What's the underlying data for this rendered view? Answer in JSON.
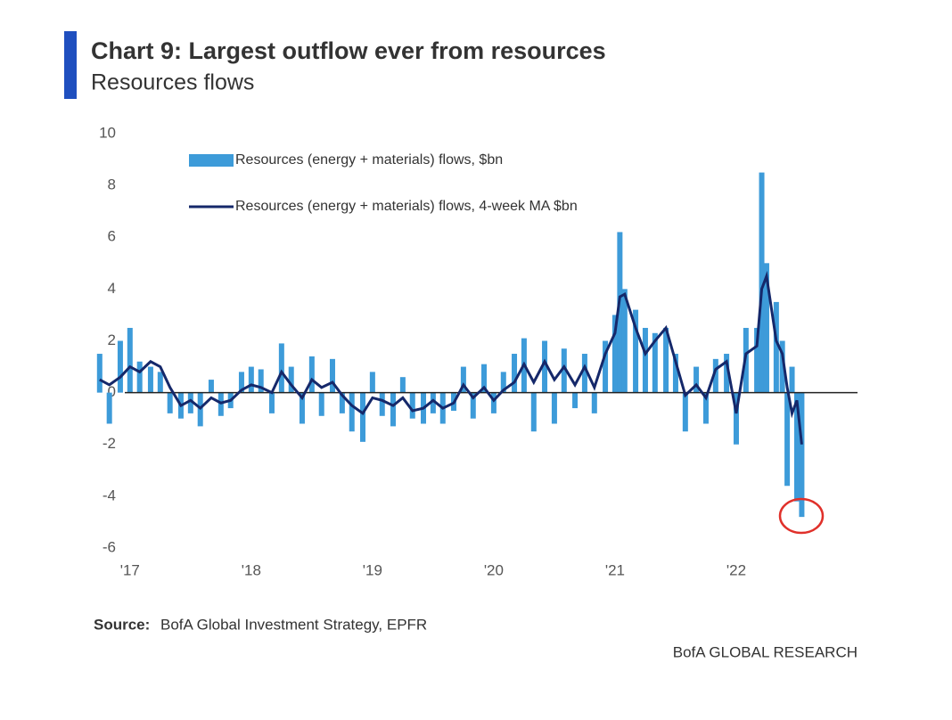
{
  "chart_data": {
    "type": "bar+line",
    "title": "Chart 9: Largest outflow ever from resources",
    "subtitle": "Resources flows",
    "source_label": "Source:",
    "source_text": "BofA Global Investment Strategy, EPFR",
    "brand": "BofA GLOBAL RESEARCH",
    "legend": "top-left",
    "xlim": [
      2016.7,
      2023.0
    ],
    "xticks": [
      {
        "value": 2017,
        "label": "'17"
      },
      {
        "value": 2018,
        "label": "'18"
      },
      {
        "value": 2019,
        "label": "'19"
      },
      {
        "value": 2020,
        "label": "'20"
      },
      {
        "value": 2021,
        "label": "'21"
      },
      {
        "value": 2022,
        "label": "'22"
      }
    ],
    "ylim": [
      -6,
      10
    ],
    "yticks": [
      -6,
      -4,
      -2,
      0,
      2,
      4,
      6,
      8,
      10
    ],
    "x": [
      2016.75,
      2016.83,
      2016.92,
      2017.0,
      2017.08,
      2017.17,
      2017.25,
      2017.33,
      2017.42,
      2017.5,
      2017.58,
      2017.67,
      2017.75,
      2017.83,
      2017.92,
      2018.0,
      2018.08,
      2018.17,
      2018.25,
      2018.33,
      2018.42,
      2018.5,
      2018.58,
      2018.67,
      2018.75,
      2018.83,
      2018.92,
      2019.0,
      2019.08,
      2019.17,
      2019.25,
      2019.33,
      2019.42,
      2019.5,
      2019.58,
      2019.67,
      2019.75,
      2019.83,
      2019.92,
      2020.0,
      2020.08,
      2020.17,
      2020.25,
      2020.33,
      2020.42,
      2020.5,
      2020.58,
      2020.67,
      2020.75,
      2020.83,
      2020.92,
      2021.0,
      2021.04,
      2021.08,
      2021.17,
      2021.25,
      2021.33,
      2021.42,
      2021.5,
      2021.58,
      2021.67,
      2021.75,
      2021.83,
      2021.92,
      2022.0,
      2022.08,
      2022.17,
      2022.21,
      2022.25,
      2022.33,
      2022.38,
      2022.42,
      2022.46,
      2022.5,
      2022.54
    ],
    "series": [
      {
        "name": "Resources (energy + materials) flows, $bn",
        "kind": "bar",
        "color": "#3d9bd9",
        "values": [
          1.5,
          -1.2,
          2.0,
          2.5,
          1.2,
          1.0,
          0.8,
          -0.8,
          -1.0,
          -0.8,
          -1.3,
          0.5,
          -0.9,
          -0.6,
          0.8,
          1.0,
          0.9,
          -0.8,
          1.9,
          1.0,
          -1.2,
          1.4,
          -0.9,
          1.3,
          -0.8,
          -1.5,
          -1.9,
          0.8,
          -0.9,
          -1.3,
          0.6,
          -1.0,
          -1.2,
          -0.8,
          -1.2,
          -0.7,
          1.0,
          -1.0,
          1.1,
          -0.8,
          0.8,
          1.5,
          2.1,
          -1.5,
          2.0,
          -1.2,
          1.7,
          -0.6,
          1.5,
          -0.8,
          2.0,
          3.0,
          6.2,
          4.0,
          3.2,
          2.5,
          2.3,
          2.5,
          1.5,
          -1.5,
          1.0,
          -1.2,
          1.3,
          1.5,
          -2.0,
          2.5,
          2.5,
          8.5,
          5.0,
          3.5,
          2.0,
          -3.6,
          1.0,
          -4.2,
          -4.8
        ]
      },
      {
        "name": "Resources (energy + materials) flows, 4-week MA $bn",
        "kind": "line",
        "color": "#15286a",
        "values": [
          0.5,
          0.3,
          0.6,
          1.0,
          0.8,
          1.2,
          1.0,
          0.2,
          -0.5,
          -0.3,
          -0.6,
          -0.2,
          -0.4,
          -0.3,
          0.1,
          0.3,
          0.2,
          0.0,
          0.8,
          0.3,
          -0.2,
          0.5,
          0.2,
          0.4,
          -0.1,
          -0.5,
          -0.8,
          -0.2,
          -0.3,
          -0.5,
          -0.2,
          -0.7,
          -0.6,
          -0.3,
          -0.6,
          -0.4,
          0.3,
          -0.2,
          0.2,
          -0.3,
          0.1,
          0.4,
          1.1,
          0.4,
          1.2,
          0.5,
          1.0,
          0.3,
          1.0,
          0.2,
          1.5,
          2.3,
          3.7,
          3.8,
          2.5,
          1.5,
          2.0,
          2.5,
          1.2,
          -0.1,
          0.3,
          -0.2,
          0.9,
          1.2,
          -0.8,
          1.5,
          1.8,
          4.0,
          4.5,
          2.0,
          1.5,
          0.2,
          -0.8,
          -0.3,
          -2.0
        ]
      }
    ]
  }
}
